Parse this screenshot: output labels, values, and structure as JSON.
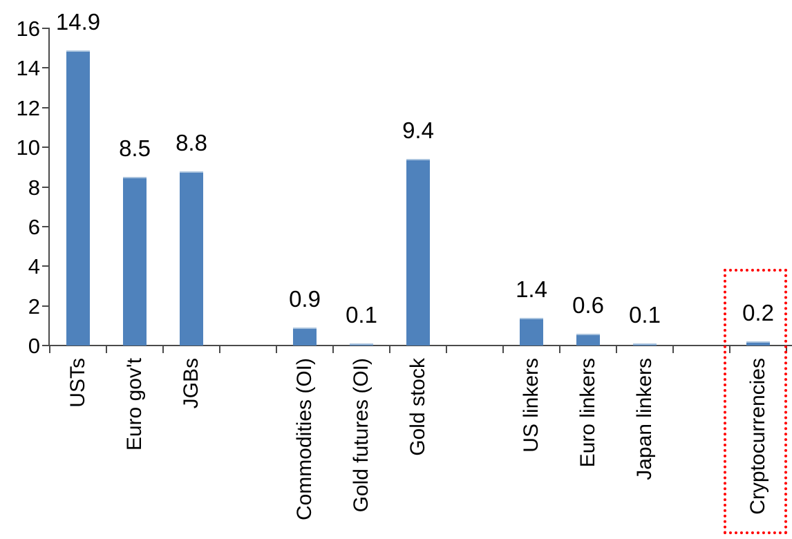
{
  "chart_data": {
    "type": "bar",
    "title": "",
    "categories": [
      "USTs",
      "Euro gov't",
      "JGBs",
      "Commodities (OI)",
      "Gold futures (OI)",
      "Gold stock",
      "US linkers",
      "Euro linkers",
      "Japan linkers",
      "Cryptocurrencies"
    ],
    "values": [
      14.9,
      8.5,
      8.8,
      0.9,
      0.1,
      9.4,
      1.4,
      0.6,
      0.1,
      0.2
    ],
    "data_labels": [
      "14.9",
      "8.5",
      "8.8",
      "0.9",
      "0.1",
      "9.4",
      "1.4",
      "0.6",
      "0.1",
      "0.2"
    ],
    "slots": [
      1,
      2,
      3,
      5,
      6,
      7,
      9,
      10,
      11,
      13
    ],
    "total_slots": 13,
    "groups": [
      [
        "USTs",
        "Euro gov't",
        "JGBs"
      ],
      [
        "Commodities (OI)",
        "Gold futures (OI)",
        "Gold stock"
      ],
      [
        "US linkers",
        "Euro linkers",
        "Japan linkers"
      ],
      [
        "Cryptocurrencies"
      ]
    ],
    "y_axis": {
      "ticks": [
        0,
        2,
        4,
        6,
        8,
        10,
        12,
        14,
        16
      ],
      "min": 0,
      "max": 16
    },
    "xlabel": "",
    "ylabel": "",
    "grid": false,
    "legend_position": "none",
    "colors": {
      "bar_fill": "#4f82bc",
      "bar_top_edge": "#a9c3de",
      "axis": "#4a4a4a",
      "text": "#000000",
      "highlight_box": "#ff0000"
    },
    "highlight": {
      "category": "Cryptocurrencies",
      "value_label": "0.2",
      "box_style": "dotted",
      "box_color": "#ff0000"
    }
  }
}
